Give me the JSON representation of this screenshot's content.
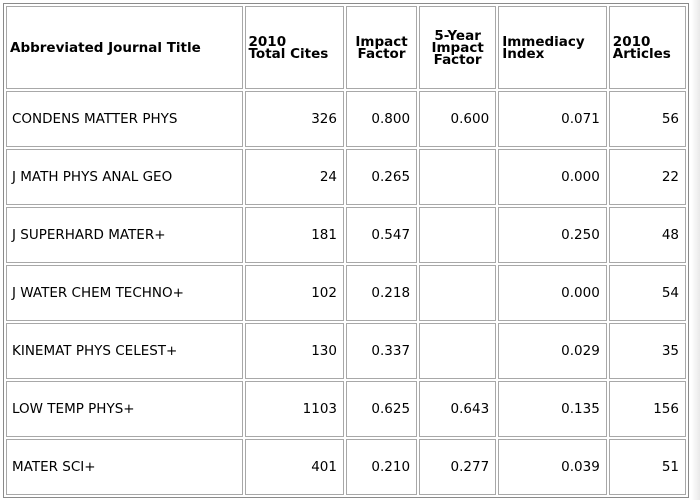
{
  "table": {
    "headers": [
      {
        "line1": "Abbreviated Journal Title",
        "line2": "",
        "line3": ""
      },
      {
        "line1": "2010",
        "line2": "Total Cites",
        "line3": ""
      },
      {
        "line1": "Impact",
        "line2": "Factor",
        "line3": ""
      },
      {
        "line1": "5-Year",
        "line2": "Impact",
        "line3": "Factor"
      },
      {
        "line1": "Immediacy",
        "line2": "Index",
        "line3": ""
      },
      {
        "line1": "2010",
        "line2": "Articles",
        "line3": ""
      }
    ],
    "rows": [
      {
        "title": "CONDENS MATTER PHYS",
        "total_cites": "326",
        "impact_factor": "0.800",
        "five_year": "0.600",
        "immediacy": "0.071",
        "articles": "56"
      },
      {
        "title": "J MATH PHYS ANAL GEO",
        "total_cites": "24",
        "impact_factor": "0.265",
        "five_year": "",
        "immediacy": "0.000",
        "articles": "22"
      },
      {
        "title": "J SUPERHARD MATER+",
        "total_cites": "181",
        "impact_factor": "0.547",
        "five_year": "",
        "immediacy": "0.250",
        "articles": "48"
      },
      {
        "title": "J WATER CHEM TECHNO+",
        "total_cites": "102",
        "impact_factor": "0.218",
        "five_year": "",
        "immediacy": "0.000",
        "articles": "54"
      },
      {
        "title": "KINEMAT PHYS CELEST+",
        "total_cites": "130",
        "impact_factor": "0.337",
        "five_year": "",
        "immediacy": "0.029",
        "articles": "35"
      },
      {
        "title": "LOW TEMP PHYS+",
        "total_cites": "1103",
        "impact_factor": "0.625",
        "five_year": "0.643",
        "immediacy": "0.135",
        "articles": "156"
      },
      {
        "title": "MATER SCI+",
        "total_cites": "401",
        "impact_factor": "0.210",
        "five_year": "0.277",
        "immediacy": "0.039",
        "articles": "51"
      }
    ]
  }
}
